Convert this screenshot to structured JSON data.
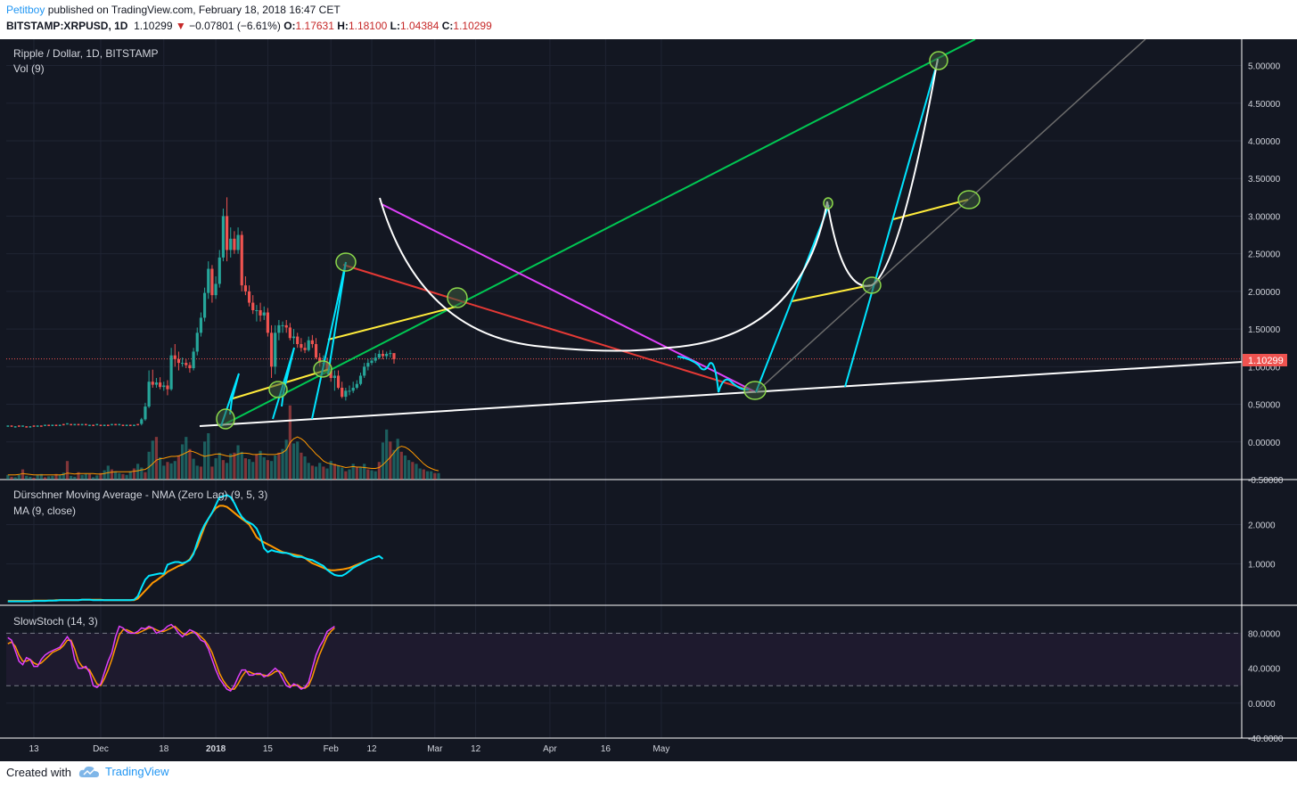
{
  "header": {
    "author": "Petitboy",
    "published_text": "published on TradingView.com, February 18, 2018 16:47 CET",
    "symbol": "BITSTAMP:XRPUSD, 1D",
    "last": "1.10299",
    "arrow": "▼",
    "change": "−0.07801 (−6.61%)",
    "o_label": "O:",
    "o": "1.17631",
    "h_label": "H:",
    "h": "1.18100",
    "l_label": "L:",
    "l": "1.04384",
    "c_label": "C:",
    "c": "1.10299"
  },
  "panes": {
    "main_title": "Ripple / Dollar, 1D, BITSTAMP",
    "volume_title": "Vol (9)",
    "dma_title": "Dürschner Moving Average - NMA (Zero Lag) (9, 5, 3)",
    "ma_title": "MA (9, close)",
    "stoch_title": "SlowStoch (14, 3)",
    "price_badge": "1.10299"
  },
  "footer": {
    "created_with": "Created with",
    "brand": "TradingView"
  },
  "colors": {
    "background": "#131722",
    "bull": "#26a69a",
    "bear": "#ef5350",
    "cyan": "#00e5ff",
    "orange": "#ff9800",
    "magenta": "#e040fb",
    "green_line": "#00c853",
    "red_line": "#e53935",
    "yellow_line": "#ffeb3b",
    "white_line": "#ffffff",
    "badge": "#ef5350"
  },
  "chart_data": {
    "type": "candlestick",
    "title": "Ripple / Dollar, 1D, BITSTAMP",
    "x_ticks": [
      "13",
      "Dec",
      "18",
      "2018",
      "15",
      "Feb",
      "12",
      "Mar",
      "12",
      "Apr",
      "16",
      "May"
    ],
    "price_axis": {
      "ticks": [
        "5.00000",
        "4.50000",
        "4.00000",
        "3.50000",
        "3.00000",
        "2.50000",
        "2.00000",
        "1.50000",
        "1.00000",
        "0.50000",
        "0.00000",
        "-0.50000"
      ],
      "ylim": [
        -0.5,
        5.35
      ]
    },
    "dma_axis": {
      "ticks": [
        "2.0000",
        "1.0000"
      ],
      "ylim": [
        -0.05,
        3.1
      ]
    },
    "stoch_axis": {
      "ticks": [
        "80.0000",
        "40.0000",
        "0.0000",
        "-40.0000"
      ],
      "ylim": [
        -40,
        110
      ],
      "bands": [
        80,
        20
      ]
    },
    "candles": {
      "dates": [
        "2017-12-12",
        "2017-12-13",
        "2017-12-14",
        "2017-12-15",
        "2017-12-16",
        "2017-12-17",
        "2017-12-18",
        "2017-12-19",
        "2017-12-20",
        "2017-12-21",
        "2017-12-22",
        "2017-12-23",
        "2017-12-24",
        "2017-12-25",
        "2017-12-26",
        "2017-12-27",
        "2017-12-28",
        "2017-12-29",
        "2017-12-30",
        "2017-12-31",
        "2018-01-01",
        "2018-01-02",
        "2018-01-03",
        "2018-01-04",
        "2018-01-05",
        "2018-01-06",
        "2018-01-07",
        "2018-01-08",
        "2018-01-09",
        "2018-01-10",
        "2018-01-11",
        "2018-01-12",
        "2018-01-13",
        "2018-01-14",
        "2018-01-15",
        "2018-01-16",
        "2018-01-17",
        "2018-01-18",
        "2018-01-19",
        "2018-01-20",
        "2018-01-21",
        "2018-01-22",
        "2018-01-23",
        "2018-01-24",
        "2018-01-25",
        "2018-01-26",
        "2018-01-27",
        "2018-01-28",
        "2018-01-29",
        "2018-01-30",
        "2018-01-31",
        "2018-02-01",
        "2018-02-02",
        "2018-02-03",
        "2018-02-04",
        "2018-02-05",
        "2018-02-06",
        "2018-02-07",
        "2018-02-08",
        "2018-02-09",
        "2018-02-10",
        "2018-02-11",
        "2018-02-12",
        "2018-02-13",
        "2018-02-14",
        "2018-02-15",
        "2018-02-16",
        "2018-02-17",
        "2018-02-18"
      ],
      "open": [
        0.24,
        0.3,
        0.47,
        0.8,
        0.76,
        0.79,
        0.73,
        0.75,
        0.7,
        1.15,
        1.1,
        1.05,
        1.05,
        1.02,
        0.98,
        1.2,
        1.45,
        1.65,
        1.98,
        2.3,
        1.95,
        2.1,
        2.45,
        3.0,
        2.55,
        2.7,
        2.55,
        2.75,
        2.08,
        2.0,
        1.85,
        1.75,
        1.75,
        1.68,
        1.72,
        1.45,
        1.0,
        1.45,
        1.55,
        1.55,
        1.52,
        1.38,
        1.4,
        1.3,
        1.25,
        1.22,
        1.35,
        1.3,
        1.12,
        1.05,
        1.05,
        0.95,
        0.85,
        0.88,
        0.72,
        0.6,
        0.68,
        0.68,
        0.72,
        0.77,
        0.88,
        1.0,
        1.05,
        1.08,
        1.12,
        1.17,
        1.14,
        1.17,
        1.18
      ],
      "close": [
        0.3,
        0.47,
        0.8,
        0.76,
        0.79,
        0.73,
        0.75,
        0.7,
        1.15,
        1.1,
        1.05,
        1.05,
        1.02,
        0.98,
        1.2,
        1.45,
        1.65,
        1.98,
        2.3,
        1.95,
        2.1,
        2.45,
        3.0,
        2.55,
        2.7,
        2.55,
        2.75,
        2.08,
        2.0,
        1.85,
        1.75,
        1.75,
        1.68,
        1.72,
        1.45,
        1.0,
        1.45,
        1.55,
        1.55,
        1.52,
        1.38,
        1.4,
        1.3,
        1.25,
        1.22,
        1.35,
        1.3,
        1.12,
        1.05,
        1.05,
        0.95,
        0.85,
        0.88,
        0.72,
        0.6,
        0.68,
        0.68,
        0.72,
        0.77,
        0.88,
        1.0,
        1.05,
        1.08,
        1.12,
        1.17,
        1.14,
        1.17,
        1.18,
        1.1
      ],
      "high": [
        0.32,
        0.52,
        0.95,
        0.96,
        0.85,
        0.86,
        0.8,
        0.82,
        1.25,
        1.3,
        1.2,
        1.12,
        1.1,
        1.06,
        1.25,
        1.52,
        1.72,
        2.05,
        2.4,
        2.35,
        2.2,
        2.55,
        3.1,
        3.25,
        2.85,
        2.8,
        2.85,
        2.8,
        2.2,
        2.08,
        1.95,
        1.82,
        1.85,
        1.8,
        1.78,
        1.55,
        1.55,
        1.62,
        1.6,
        1.62,
        1.58,
        1.5,
        1.45,
        1.38,
        1.32,
        1.4,
        1.42,
        1.38,
        1.18,
        1.15,
        1.12,
        1.0,
        0.95,
        0.95,
        0.8,
        0.72,
        0.75,
        0.8,
        0.82,
        0.92,
        1.05,
        1.1,
        1.12,
        1.18,
        1.22,
        1.22,
        1.2,
        1.22,
        1.18
      ],
      "low": [
        0.22,
        0.28,
        0.45,
        0.72,
        0.72,
        0.7,
        0.68,
        0.62,
        0.68,
        1.0,
        0.95,
        1.0,
        0.98,
        0.92,
        0.95,
        1.15,
        1.4,
        1.6,
        1.9,
        1.85,
        1.9,
        2.05,
        2.4,
        2.4,
        2.45,
        2.5,
        2.5,
        2.0,
        1.95,
        1.8,
        1.7,
        1.6,
        1.6,
        1.62,
        1.4,
        0.85,
        0.9,
        1.35,
        1.45,
        1.45,
        1.35,
        1.3,
        1.25,
        1.2,
        1.18,
        1.2,
        1.25,
        1.1,
        1.0,
        1.0,
        0.9,
        0.8,
        0.68,
        0.7,
        0.58,
        0.55,
        0.62,
        0.65,
        0.7,
        0.75,
        0.85,
        0.95,
        1.02,
        1.05,
        1.1,
        1.1,
        1.1,
        1.12,
        1.04
      ]
    },
    "early_prices": {
      "start_date": "2017-11-06",
      "values": [
        0.21,
        0.21,
        0.2,
        0.21,
        0.21,
        0.2,
        0.2,
        0.21,
        0.21,
        0.21,
        0.22,
        0.22,
        0.22,
        0.22,
        0.22,
        0.23,
        0.24,
        0.23,
        0.23,
        0.23,
        0.23,
        0.23,
        0.22,
        0.22,
        0.23,
        0.22,
        0.22,
        0.22,
        0.23,
        0.23,
        0.23,
        0.22,
        0.22,
        0.22,
        0.22,
        0.23
      ]
    },
    "volume": {
      "start_date": "2017-11-06",
      "values": [
        10,
        6,
        5,
        10,
        22,
        8,
        6,
        4,
        10,
        12,
        5,
        7,
        8,
        12,
        10,
        15,
        40,
        8,
        6,
        16,
        10,
        12,
        12,
        5,
        9,
        14,
        20,
        30,
        22,
        18,
        14,
        12,
        10,
        18,
        24,
        34,
        26,
        16,
        60,
        84,
        92,
        48,
        30,
        38,
        35,
        40,
        52,
        76,
        92,
        66,
        45,
        30,
        28,
        82,
        100,
        28,
        46,
        58,
        42,
        36,
        56,
        58,
        74,
        60,
        46,
        44,
        38,
        55,
        62,
        48,
        42,
        40,
        52,
        58,
        66,
        86,
        160,
        78,
        82,
        58,
        50,
        36,
        30,
        28,
        36,
        28,
        24,
        40,
        34,
        30,
        26,
        18,
        22,
        34,
        28,
        26,
        34,
        22,
        20,
        18,
        38,
        80,
        108,
        82,
        64,
        88,
        60,
        52,
        42,
        38,
        34,
        24,
        22,
        18,
        18,
        14,
        14
      ],
      "ma9": [
        10,
        10,
        10,
        11,
        13,
        12,
        11,
        10,
        10,
        10,
        10,
        10,
        10,
        10,
        10,
        11,
        14,
        13,
        12,
        13,
        13,
        13,
        13,
        13,
        12,
        12,
        13,
        15,
        16,
        17,
        17,
        17,
        17,
        17,
        18,
        19,
        21,
        22,
        27,
        34,
        42,
        45,
        46,
        48,
        50,
        50,
        51,
        54,
        58,
        62,
        60,
        57,
        53,
        50,
        52,
        53,
        55,
        55,
        53,
        51,
        50,
        52,
        55,
        57,
        57,
        56,
        54,
        54,
        55,
        55,
        54,
        54,
        54,
        56,
        58,
        64,
        80,
        88,
        92,
        88,
        82,
        72,
        64,
        55,
        48,
        40,
        36,
        34,
        32,
        30,
        28,
        26,
        27,
        28,
        27,
        27,
        26,
        25,
        24,
        24,
        26,
        32,
        40,
        48,
        58,
        68,
        72,
        70,
        65,
        58,
        50,
        42,
        34,
        28,
        24,
        21,
        19
      ]
    },
    "dma": {
      "start_date": "2017-11-06",
      "nma": [
        0.05,
        0.05,
        0.05,
        0.05,
        0.05,
        0.05,
        0.05,
        0.06,
        0.06,
        0.06,
        0.06,
        0.07,
        0.07,
        0.07,
        0.08,
        0.08,
        0.08,
        0.08,
        0.08,
        0.08,
        0.09,
        0.09,
        0.09,
        0.08,
        0.08,
        0.08,
        0.08,
        0.08,
        0.08,
        0.08,
        0.08,
        0.08,
        0.08,
        0.08,
        0.09,
        0.18,
        0.4,
        0.6,
        0.7,
        0.72,
        0.74,
        0.76,
        0.75,
        0.98,
        1.02,
        1.05,
        1.05,
        1.02,
        1.05,
        1.1,
        1.25,
        1.55,
        1.8,
        2.0,
        2.15,
        2.3,
        2.5,
        2.7,
        2.72,
        2.75,
        2.7,
        2.55,
        2.35,
        2.2,
        2.1,
        2.05,
        2.0,
        1.9,
        1.7,
        1.4,
        1.3,
        1.35,
        1.32,
        1.3,
        1.28,
        1.28,
        1.25,
        1.2,
        1.18,
        1.18,
        1.15,
        1.12,
        1.1,
        1.05,
        1.0,
        0.95,
        0.85,
        0.78,
        0.72,
        0.7,
        0.7,
        0.75,
        0.82,
        0.9,
        0.95,
        1.0,
        1.05,
        1.1,
        1.13,
        1.17,
        1.2,
        1.13
      ],
      "ma": [
        0.06,
        0.06,
        0.06,
        0.06,
        0.06,
        0.06,
        0.06,
        0.07,
        0.07,
        0.07,
        0.07,
        0.07,
        0.07,
        0.08,
        0.08,
        0.08,
        0.08,
        0.08,
        0.08,
        0.08,
        0.09,
        0.09,
        0.09,
        0.09,
        0.09,
        0.09,
        0.08,
        0.08,
        0.08,
        0.08,
        0.08,
        0.08,
        0.08,
        0.08,
        0.08,
        0.12,
        0.22,
        0.32,
        0.42,
        0.52,
        0.58,
        0.65,
        0.72,
        0.8,
        0.85,
        0.9,
        0.95,
        0.98,
        1.05,
        1.12,
        1.28,
        1.45,
        1.7,
        1.95,
        2.15,
        2.3,
        2.42,
        2.48,
        2.48,
        2.45,
        2.38,
        2.3,
        2.22,
        2.15,
        2.08,
        2.0,
        1.85,
        1.68,
        1.6,
        1.55,
        1.5,
        1.45,
        1.4,
        1.35,
        1.3,
        1.28,
        1.26,
        1.24,
        1.22,
        1.2,
        1.15,
        1.08,
        1.02,
        0.98,
        0.94,
        0.9,
        0.86,
        0.84,
        0.84,
        0.85,
        0.86,
        0.88,
        0.9,
        0.94,
        0.98,
        1.02,
        1.05
      ]
    },
    "stoch": {
      "start_date": "2017-11-06",
      "k": [
        75,
        72,
        60,
        48,
        44,
        52,
        50,
        42,
        42,
        50,
        55,
        58,
        60,
        62,
        64,
        70,
        76,
        70,
        50,
        40,
        40,
        42,
        35,
        20,
        18,
        22,
        35,
        48,
        58,
        76,
        88,
        86,
        82,
        80,
        80,
        82,
        86,
        85,
        88,
        86,
        80,
        82,
        84,
        88,
        90,
        86,
        80,
        76,
        80,
        84,
        82,
        78,
        72,
        70,
        62,
        50,
        38,
        28,
        22,
        16,
        14,
        20,
        30,
        38,
        38,
        32,
        32,
        34,
        34,
        30,
        32,
        36,
        40,
        36,
        28,
        20,
        18,
        22,
        20,
        16,
        18,
        24,
        40,
        55,
        65,
        72,
        82,
        85,
        88
      ],
      "d": [
        68,
        70,
        65,
        55,
        48,
        48,
        50,
        46,
        44,
        46,
        50,
        54,
        58,
        60,
        62,
        66,
        72,
        72,
        62,
        48,
        42,
        40,
        38,
        30,
        22,
        20,
        28,
        38,
        50,
        64,
        78,
        84,
        84,
        82,
        80,
        80,
        82,
        84,
        86,
        86,
        84,
        82,
        82,
        84,
        86,
        88,
        84,
        80,
        78,
        80,
        82,
        80,
        76,
        72,
        66,
        58,
        46,
        34,
        26,
        20,
        16,
        16,
        22,
        30,
        36,
        36,
        34,
        33,
        33,
        32,
        31,
        33,
        36,
        37,
        34,
        26,
        20,
        20,
        21,
        18,
        17,
        20,
        30,
        44,
        56,
        66,
        76,
        82,
        86
      ]
    },
    "annotations": [
      "trendline-green",
      "trendline-red",
      "trendline-magenta",
      "trendline-white-support",
      "trendline-grey",
      "yellow-segments",
      "projected-path-cyan",
      "cup-and-handle-white-curves",
      "circle-markers"
    ]
  }
}
